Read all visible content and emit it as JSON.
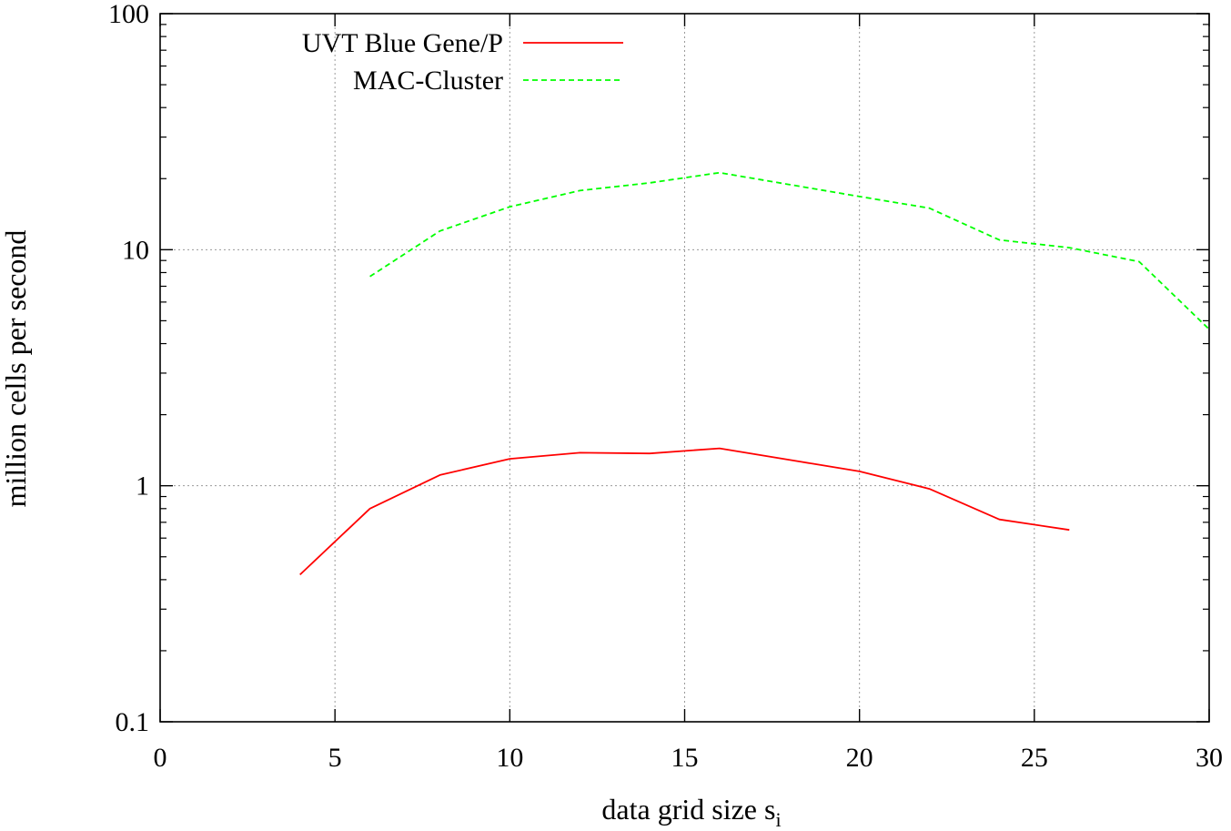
{
  "chart_data": {
    "type": "line",
    "title": "",
    "xlabel": "data grid size s",
    "xlabel_subscript": "i",
    "ylabel": "million cells per second",
    "xlim": [
      0,
      30
    ],
    "ylim": [
      0.1,
      100
    ],
    "y_scale": "log",
    "x_ticks": [
      0,
      5,
      10,
      15,
      20,
      25,
      30
    ],
    "x_tick_labels": [
      "0",
      "5",
      "10",
      "15",
      "20",
      "25",
      "30"
    ],
    "y_ticks": [
      0.1,
      1,
      10,
      100
    ],
    "y_tick_labels": [
      "0.1",
      "1",
      "10",
      "100"
    ],
    "grid": true,
    "legend_position": "top-left",
    "series": [
      {
        "name": "UVT Blue Gene/P",
        "color": "#ff0000",
        "dash": "solid",
        "x": [
          4,
          6,
          8,
          10,
          12,
          14,
          16,
          20,
          22,
          24,
          26
        ],
        "y": [
          0.42,
          0.8,
          1.11,
          1.3,
          1.38,
          1.37,
          1.44,
          1.15,
          0.97,
          0.72,
          0.65
        ]
      },
      {
        "name": "MAC-Cluster",
        "color": "#00ff00",
        "dash": "dashed",
        "x": [
          6,
          8,
          10,
          12,
          14,
          16,
          20,
          22,
          24,
          26,
          28,
          30
        ],
        "y": [
          7.7,
          12,
          15.2,
          17.8,
          19.2,
          21.2,
          16.8,
          15,
          11,
          10.2,
          8.9,
          4.6
        ]
      }
    ]
  }
}
